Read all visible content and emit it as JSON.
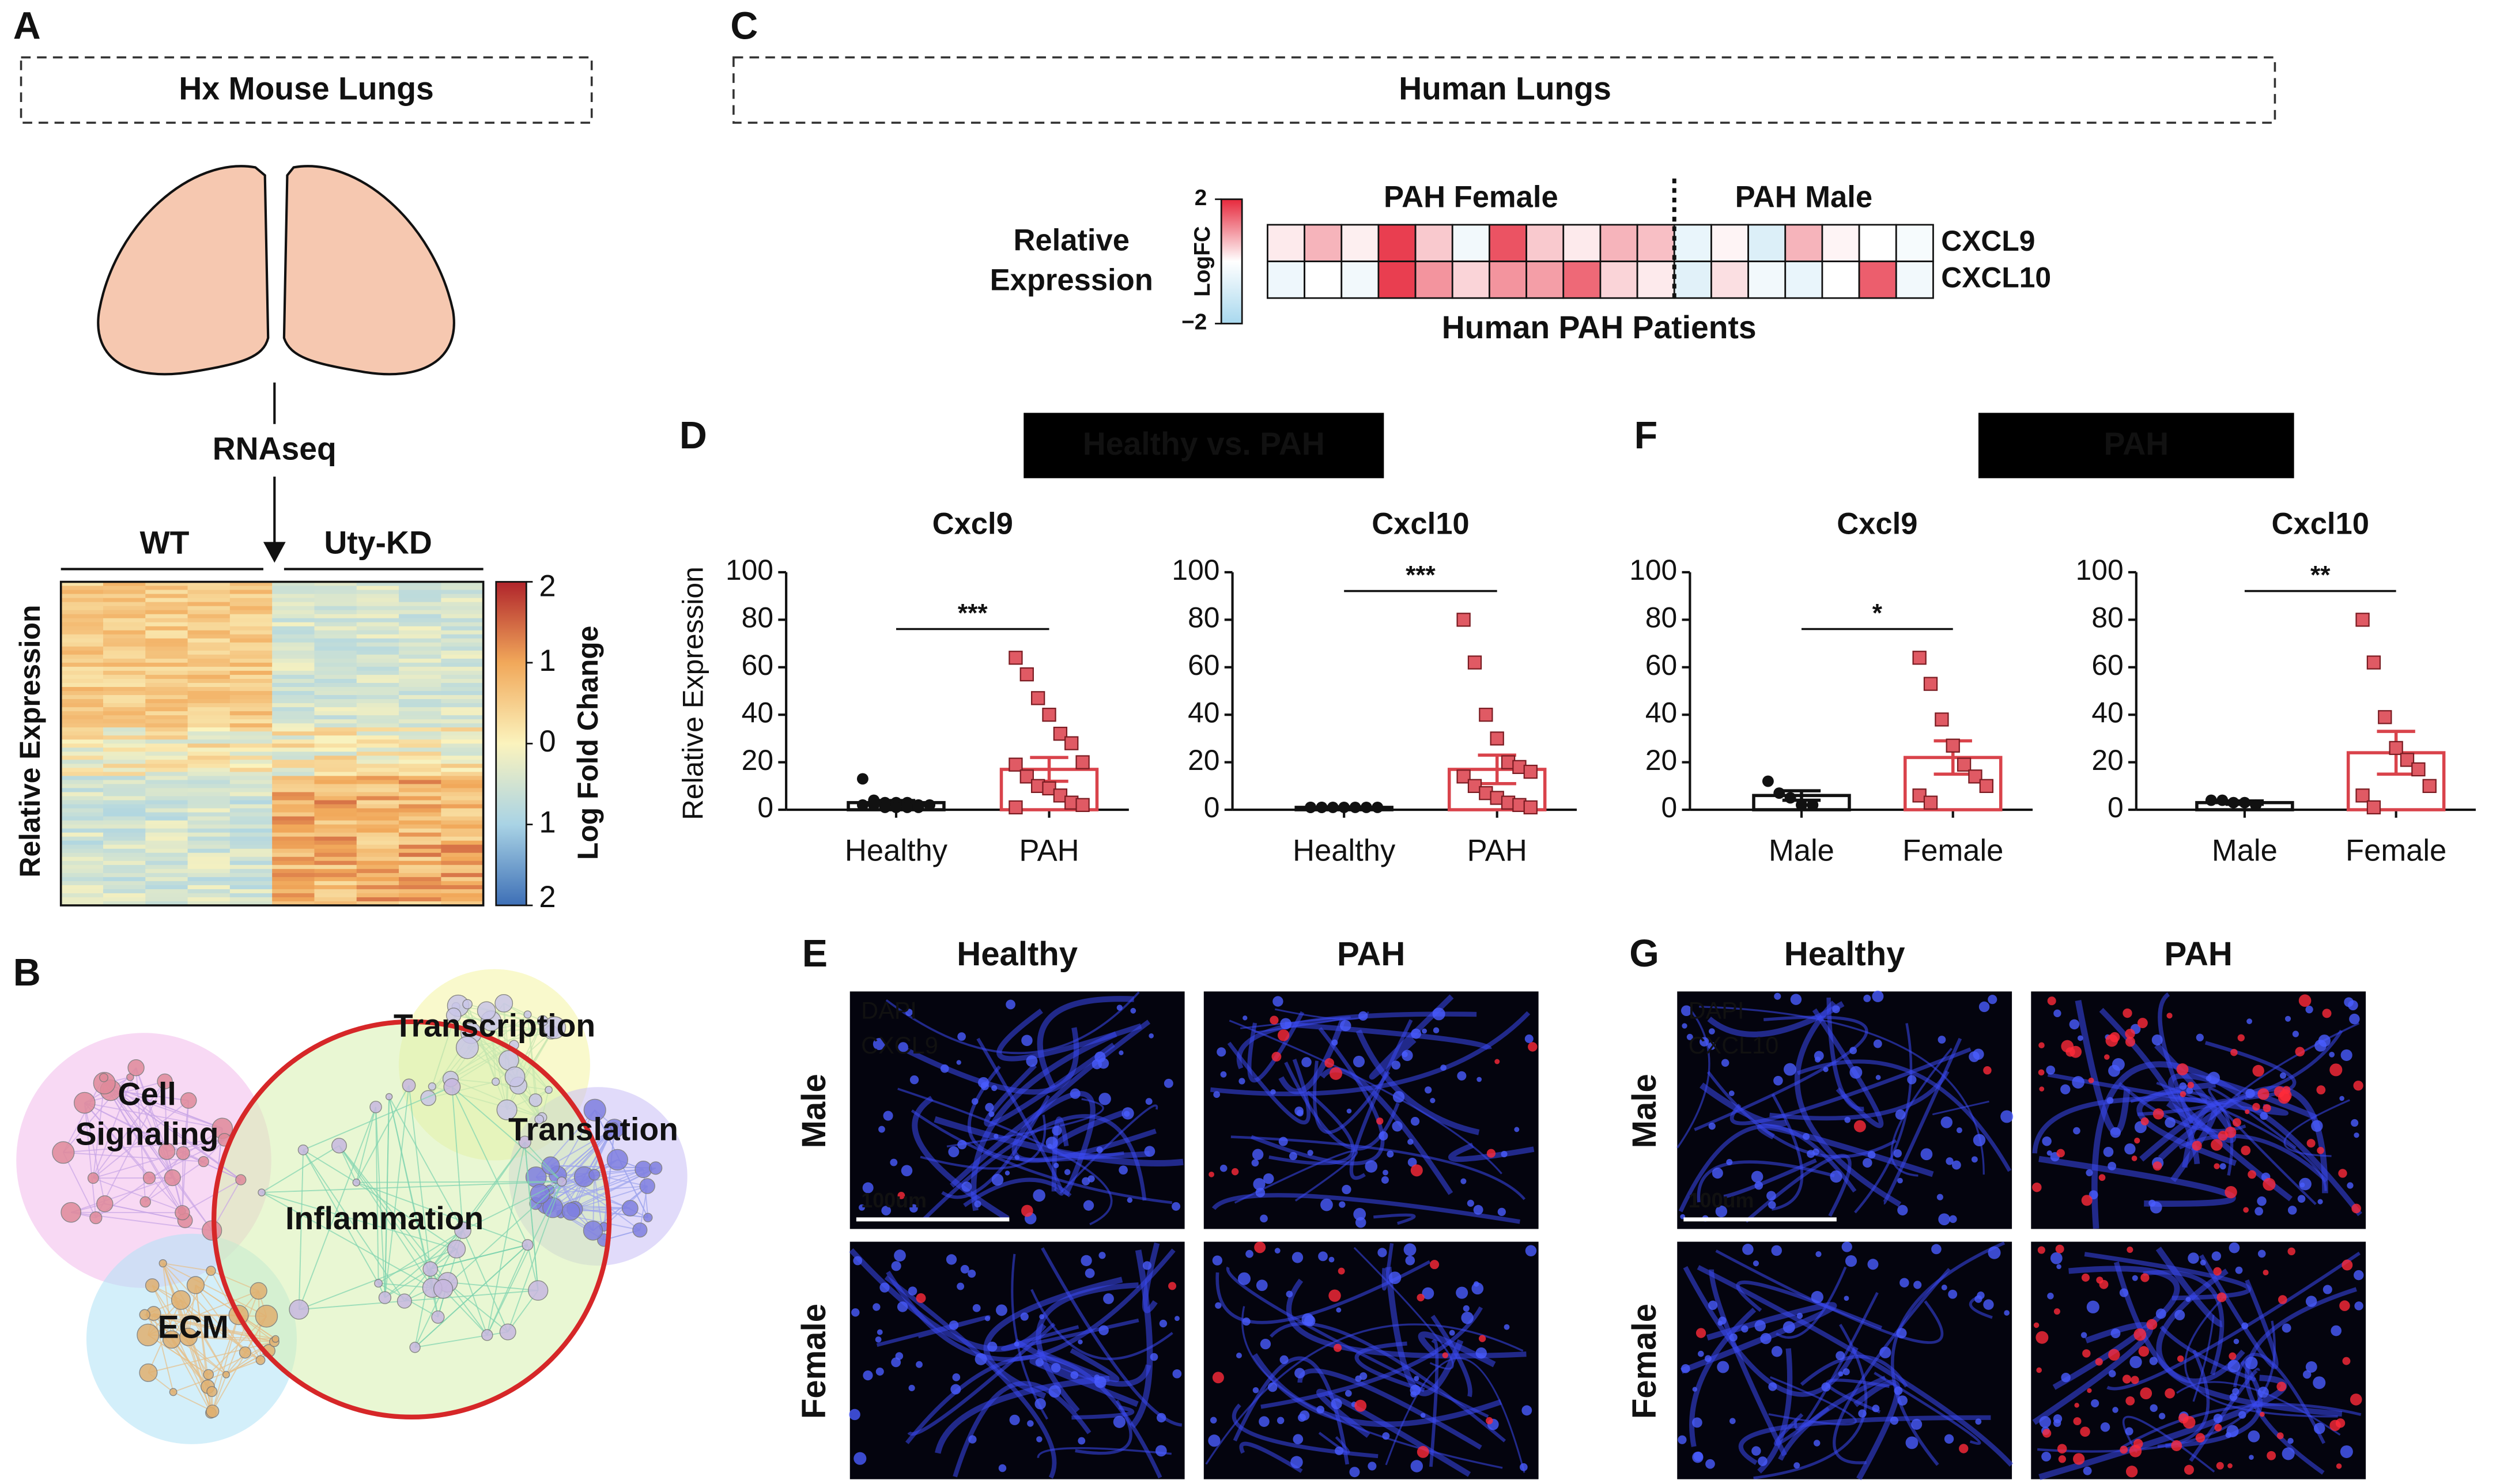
{
  "panel_labels": [
    "A",
    "B",
    "C",
    "D",
    "E",
    "F",
    "G"
  ],
  "panel_a": {
    "title": "Hx Mouse Lungs",
    "method": "RNAseq",
    "groups": [
      "WT",
      "Uty-KD"
    ],
    "y_label": "Relative Expression",
    "colorbar": {
      "label": "Log Fold Change",
      "lim": [
        -2,
        2
      ],
      "ticks": [
        2,
        1,
        0,
        {
          "value": -1,
          "label": "1"
        },
        {
          "value": -2,
          "label": "2"
        }
      ]
    }
  },
  "panel_b": {
    "clusters": [
      [
        "Cell",
        "Signaling"
      ],
      [
        "Transcription"
      ],
      [
        "Translation"
      ],
      [
        "Inflammation"
      ],
      [
        "ECM"
      ]
    ]
  },
  "panel_d": {
    "header": "Healthy vs. PAH"
  },
  "panel_f": {
    "header": "PAH"
  },
  "panel_e": {
    "columns": [
      "Healthy",
      "PAH"
    ],
    "rows": [
      "Male",
      "Female"
    ],
    "stains": [
      "DAPI",
      "CXCL9"
    ],
    "scale_bar": "100um"
  },
  "panel_g": {
    "columns": [
      "Healthy",
      "PAH"
    ],
    "rows": [
      "Male",
      "Female"
    ],
    "stains": [
      "DAPI",
      "CXCL10"
    ],
    "scale_bar": "100um"
  },
  "chart_data": [
    {
      "type": "heatmap",
      "title": "Human Lungs",
      "y_label": [
        "Relative",
        "Expression"
      ],
      "x_label": "Human PAH Patients",
      "rows": [
        "CXCL9",
        "CXCL10"
      ],
      "groups": [
        {
          "name": "PAH Female",
          "values": [
            [
              0.2,
              0.7,
              0.15,
              1.8,
              0.5,
              -0.3,
              1.6,
              0.5,
              0.2,
              0.7,
              0.6
            ],
            [
              -0.4,
              0,
              -0.3,
              1.8,
              1.0,
              0.4,
              1.0,
              0.9,
              1.4,
              0.4,
              0.2
            ]
          ]
        },
        {
          "name": "PAH Male",
          "values": [
            [
              -0.5,
              0.1,
              -0.8,
              0.7,
              0.1,
              0,
              -0.2
            ],
            [
              -0.7,
              0.3,
              -0.3,
              -0.5,
              0,
              1.5,
              -0.3
            ]
          ]
        }
      ],
      "zlim": [
        -2,
        2
      ],
      "zticks": [
        2,
        {
          "value": -2,
          "label": "−2"
        }
      ],
      "colorbar_label": "LogFC",
      "colors": {
        "low": "#a8d8ee",
        "mid": "#ffffff",
        "high": "#e6283c"
      }
    },
    {
      "type": "bar_scatter",
      "title": "Cxcl9",
      "y_label": "Relative Expression",
      "categories": [
        "Healthy",
        "PAH"
      ],
      "values": [
        3,
        17
      ],
      "errors": [
        0.9,
        5
      ],
      "points": [
        [
          13,
          4,
          3,
          3,
          3,
          2,
          2,
          2,
          2,
          1,
          1,
          1,
          1
        ],
        [
          64,
          57,
          47,
          40,
          32,
          28,
          20,
          19,
          14,
          10,
          9,
          6,
          3,
          2,
          1
        ]
      ],
      "colors": [
        "#111111",
        "#d9434b"
      ],
      "markers": [
        "circle",
        "square"
      ],
      "significance": "***",
      "ylim": [
        0,
        100
      ],
      "yticks": [
        0,
        20,
        40,
        60,
        80,
        100
      ]
    },
    {
      "type": "bar_scatter",
      "title": "Cxcl10",
      "categories": [
        "Healthy",
        "PAH"
      ],
      "values": [
        1,
        17
      ],
      "errors": [
        0.2,
        6
      ],
      "points": [
        [
          1,
          1,
          1,
          1,
          1,
          1,
          1,
          1,
          1
        ],
        [
          80,
          62,
          40,
          30,
          20,
          18,
          16,
          14,
          10,
          7,
          5,
          3,
          2,
          1
        ]
      ],
      "colors": [
        "#111111",
        "#d9434b"
      ],
      "markers": [
        "circle",
        "square"
      ],
      "significance": "***",
      "ylim": [
        0,
        100
      ],
      "yticks": [
        0,
        20,
        40,
        60,
        80,
        100
      ]
    },
    {
      "type": "bar_scatter",
      "title": "Cxcl9",
      "categories": [
        "Male",
        "Female"
      ],
      "values": [
        6,
        22
      ],
      "errors": [
        2,
        7
      ],
      "points": [
        [
          12,
          7,
          5,
          2,
          2
        ],
        [
          64,
          53,
          38,
          27,
          19,
          14,
          10,
          6,
          3
        ]
      ],
      "colors": [
        "#111111",
        "#d9434b"
      ],
      "markers": [
        "circle",
        "square"
      ],
      "significance": "*",
      "ylim": [
        0,
        100
      ],
      "yticks": [
        0,
        20,
        40,
        60,
        80,
        100
      ]
    },
    {
      "type": "bar_scatter",
      "title": "Cxcl10",
      "categories": [
        "Male",
        "Female"
      ],
      "values": [
        3,
        24
      ],
      "errors": [
        0.7,
        9
      ],
      "points": [
        [
          4,
          4,
          3,
          3,
          2
        ],
        [
          80,
          62,
          39,
          26,
          21,
          17,
          10,
          6,
          1
        ]
      ],
      "colors": [
        "#111111",
        "#d9434b"
      ],
      "markers": [
        "circle",
        "square"
      ],
      "significance": "**",
      "ylim": [
        0,
        100
      ],
      "yticks": [
        0,
        20,
        40,
        60,
        80,
        100
      ]
    }
  ]
}
